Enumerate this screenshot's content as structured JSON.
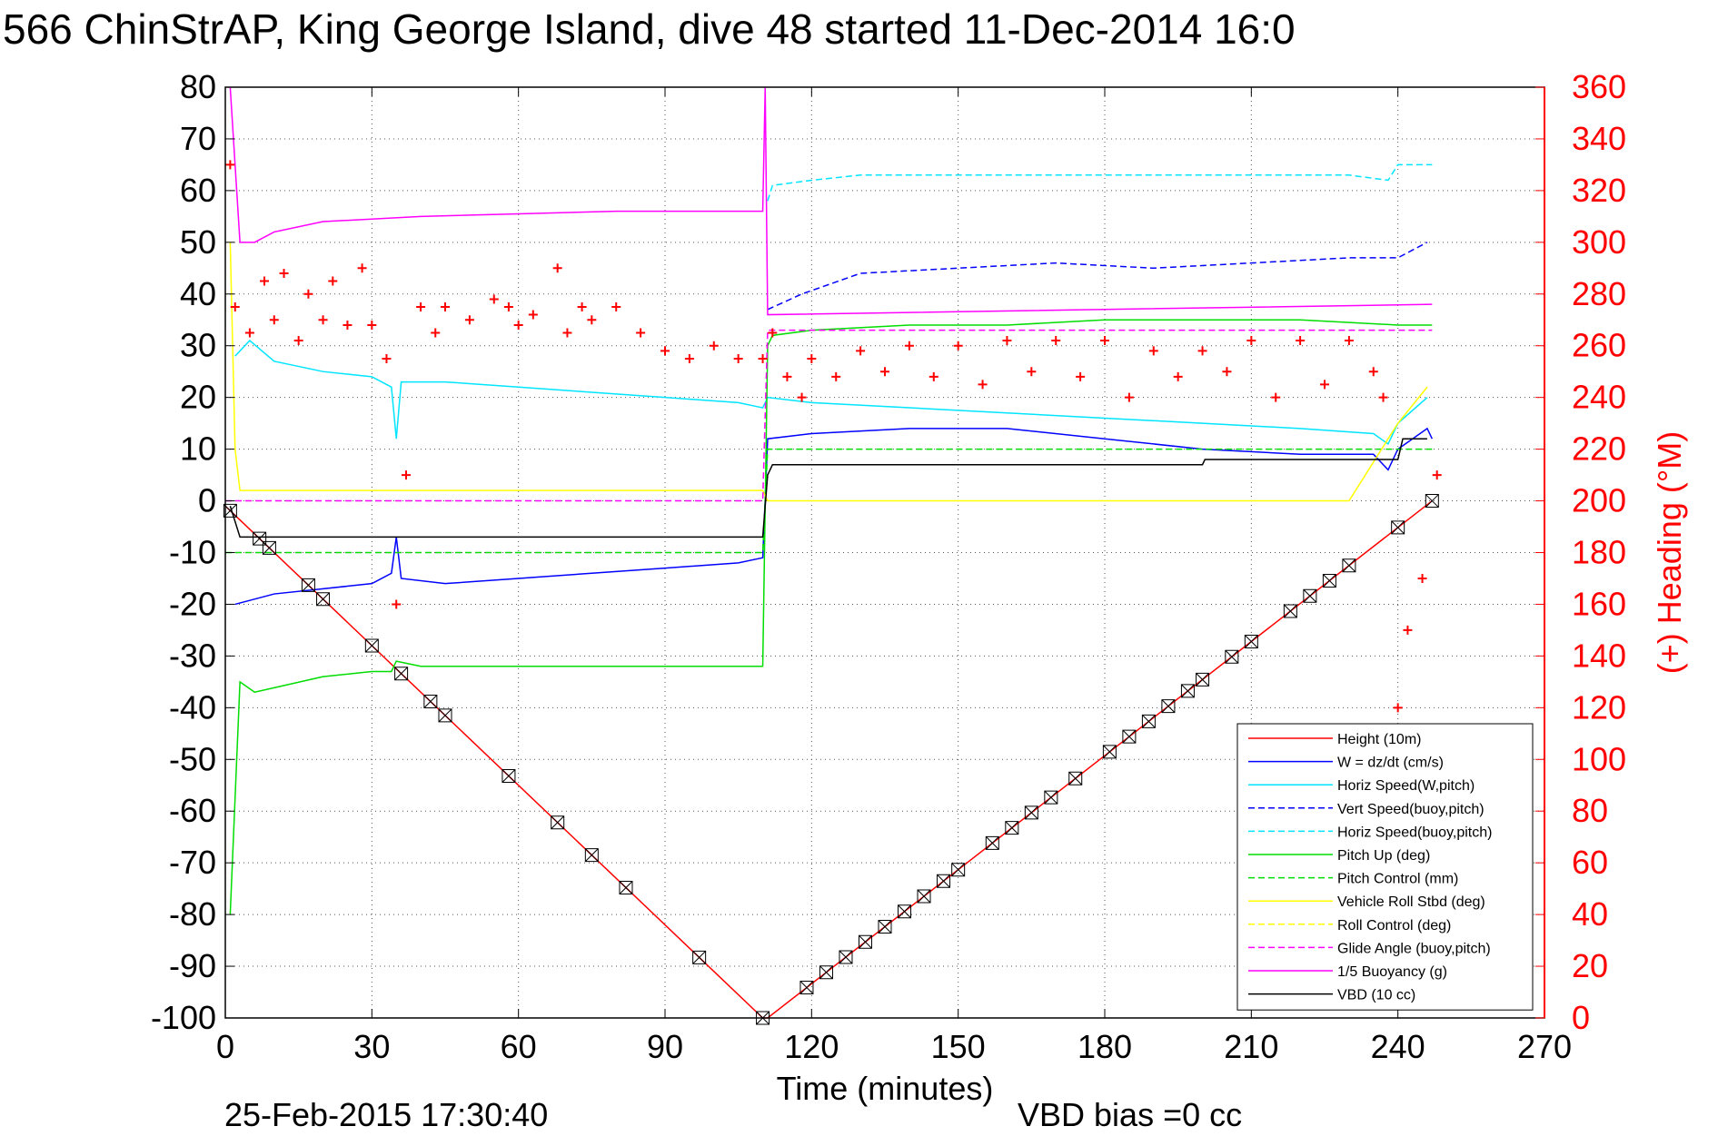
{
  "chart_data": {
    "type": "line",
    "title": "566 ChinStrAP, King George Island, dive 48 started 11-Dec-2014 16:0",
    "xlabel": "Time (minutes)",
    "ylabel_right": "(+) Heading (°M)",
    "footer_left": "25-Feb-2015 17:30:40",
    "footer_right": "VBD bias =0 cc",
    "xlim": [
      0,
      270
    ],
    "ylim": [
      -100,
      80
    ],
    "ylim_right": [
      0,
      360
    ],
    "x_ticks": [
      0,
      30,
      60,
      90,
      120,
      150,
      180,
      210,
      240,
      270
    ],
    "y_ticks": [
      80,
      70,
      60,
      50,
      40,
      30,
      20,
      10,
      0,
      -10,
      -20,
      -30,
      -40,
      -50,
      -60,
      -70,
      -80,
      -90,
      -100
    ],
    "y_ticks_right": [
      360,
      340,
      320,
      300,
      280,
      260,
      240,
      220,
      200,
      180,
      160,
      140,
      120,
      100,
      80,
      60,
      40,
      20,
      0
    ],
    "grid": true,
    "legend_position": "bottom-right",
    "series": [
      {
        "name": "Height (10m)",
        "color": "#ff0000",
        "style": "solid",
        "x": [
          0,
          110,
          111,
          247
        ],
        "y": [
          -1,
          -100,
          -100,
          0
        ]
      },
      {
        "name": "W = dz/dt (cm/s)",
        "color": "#0000ff",
        "style": "solid",
        "x": [
          2,
          10,
          20,
          30,
          34,
          35,
          36,
          45,
          60,
          75,
          90,
          105,
          110,
          111,
          120,
          140,
          160,
          180,
          200,
          220,
          235,
          238,
          240,
          246,
          247
        ],
        "y": [
          -20,
          -18,
          -17,
          -16,
          -14,
          -7,
          -15,
          -16,
          -15,
          -14,
          -13,
          -12,
          -11,
          12,
          13,
          14,
          14,
          12,
          10,
          9,
          9,
          6,
          10,
          14,
          12
        ]
      },
      {
        "name": "Horiz Speed(W,pitch)",
        "color": "#00e5ff",
        "style": "solid",
        "x": [
          2,
          5,
          10,
          20,
          30,
          34,
          35,
          36,
          45,
          60,
          75,
          90,
          105,
          110,
          111,
          120,
          140,
          160,
          180,
          200,
          220,
          235,
          238,
          240,
          246
        ],
        "y": [
          28,
          31,
          27,
          25,
          24,
          22,
          12,
          23,
          23,
          22,
          21,
          20,
          19,
          18,
          20,
          19,
          18,
          17,
          16,
          15,
          14,
          13,
          11,
          15,
          20
        ]
      },
      {
        "name": "Vert Speed(buoy,pitch)",
        "color": "#0000ff",
        "style": "dashed",
        "x": [
          111,
          118,
          130,
          150,
          170,
          190,
          210,
          230,
          240,
          246
        ],
        "y": [
          37,
          40,
          44,
          45,
          46,
          45,
          46,
          47,
          47,
          50
        ]
      },
      {
        "name": "Horiz Speed(buoy,pitch)",
        "color": "#00e5ff",
        "style": "dashed",
        "x": [
          111,
          112,
          120,
          130,
          150,
          170,
          190,
          210,
          230,
          238,
          240,
          247
        ],
        "y": [
          58,
          61,
          62,
          63,
          63,
          63,
          63,
          63,
          63,
          62,
          65,
          65
        ]
      },
      {
        "name": "Pitch Up (deg)",
        "color": "#00dd00",
        "style": "solid",
        "x": [
          1,
          3,
          6,
          20,
          30,
          34,
          35,
          40,
          60,
          75,
          90,
          100,
          110,
          111,
          112,
          120,
          140,
          160,
          180,
          200,
          220,
          240,
          247
        ],
        "y": [
          -80,
          -35,
          -37,
          -34,
          -33,
          -33,
          -31,
          -32,
          -32,
          -32,
          -32,
          -32,
          -32,
          30,
          32,
          33,
          34,
          34,
          35,
          35,
          35,
          34,
          34
        ]
      },
      {
        "name": "Pitch Control (mm)",
        "color": "#00dd00",
        "style": "dashed",
        "x": [
          0,
          110,
          111,
          247
        ],
        "y": [
          -10,
          -10,
          10,
          10
        ]
      },
      {
        "name": "Vehicle Roll Stbd (deg)",
        "color": "#ffff00",
        "style": "solid",
        "x": [
          1,
          2,
          3,
          10,
          20,
          30,
          40,
          60,
          80,
          100,
          110,
          111,
          130,
          150,
          170,
          190,
          210,
          230,
          240,
          246
        ],
        "y": [
          50,
          10,
          2,
          2,
          2,
          2,
          2,
          2,
          2,
          2,
          2,
          0,
          0,
          0,
          0,
          0,
          0,
          0,
          15,
          22
        ]
      },
      {
        "name": "Roll Control (deg)",
        "color": "#ffff00",
        "style": "dashed",
        "x": [],
        "y": []
      },
      {
        "name": "Glide Angle (buoy,pitch)",
        "color": "#ff00ff",
        "style": "dashed",
        "x": [
          0,
          110,
          111,
          247
        ],
        "y": [
          0,
          0,
          33,
          33
        ]
      },
      {
        "name": "1/5 Buoyancy (g)",
        "color": "#ff00ff",
        "style": "solid",
        "x": [
          1,
          3,
          6,
          10,
          20,
          40,
          60,
          80,
          110,
          110.5,
          111,
          247
        ],
        "y": [
          80,
          50,
          50,
          52,
          54,
          55,
          55.5,
          56,
          56,
          80,
          36,
          38
        ]
      },
      {
        "name": "VBD (10 cc)",
        "color": "#000000",
        "style": "solid",
        "x": [
          1,
          3,
          10,
          110,
          111,
          112,
          200,
          200.5,
          240,
          241,
          246
        ],
        "y": [
          -1,
          -7,
          -7,
          -7,
          5,
          7,
          7,
          8,
          8,
          12,
          12
        ]
      }
    ],
    "heading_series": {
      "name": "(+) Heading",
      "color": "#ff0000",
      "marker": "+",
      "x": [
        1,
        2,
        5,
        8,
        10,
        12,
        15,
        17,
        20,
        22,
        25,
        28,
        30,
        33,
        35,
        37,
        40,
        43,
        45,
        50,
        55,
        58,
        60,
        63,
        68,
        70,
        73,
        75,
        80,
        85,
        90,
        95,
        100,
        105,
        110,
        112,
        115,
        118,
        120,
        125,
        130,
        135,
        140,
        145,
        150,
        155,
        160,
        165,
        170,
        175,
        180,
        185,
        190,
        195,
        200,
        205,
        210,
        215,
        220,
        225,
        230,
        235,
        237,
        240,
        242,
        245,
        248
      ],
      "y": [
        330,
        275,
        265,
        285,
        270,
        288,
        262,
        280,
        270,
        285,
        268,
        290,
        268,
        255,
        160,
        210,
        275,
        265,
        275,
        270,
        278,
        275,
        268,
        272,
        290,
        265,
        275,
        270,
        275,
        265,
        258,
        255,
        260,
        255,
        255,
        265,
        248,
        240,
        255,
        248,
        258,
        250,
        260,
        248,
        260,
        245,
        262,
        250,
        262,
        248,
        262,
        240,
        258,
        248,
        258,
        250,
        262,
        240,
        262,
        245,
        262,
        250,
        240,
        120,
        150,
        170,
        210
      ]
    }
  }
}
